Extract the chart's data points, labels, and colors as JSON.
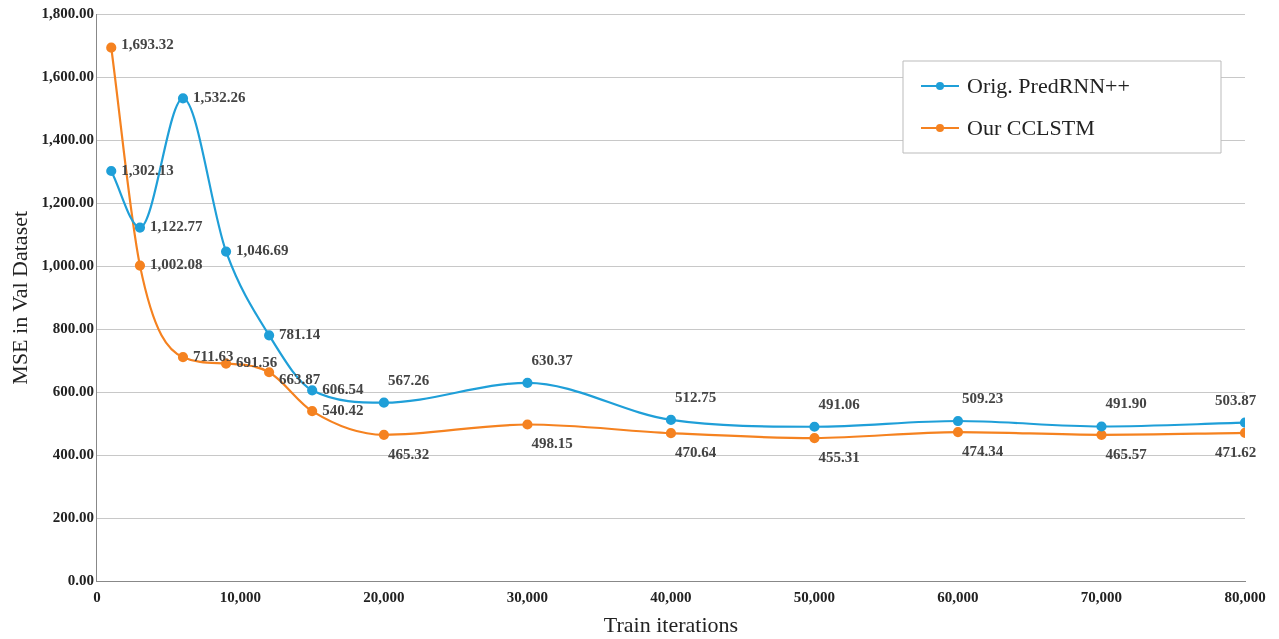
{
  "chart_data": {
    "type": "line",
    "xlabel": "Train iterations",
    "ylabel": "MSE in Val Dataset",
    "x": [
      1000,
      3000,
      6000,
      9000,
      12000,
      15000,
      20000,
      30000,
      40000,
      50000,
      60000,
      70000,
      80000
    ],
    "series": [
      {
        "name": "Orig. PredRNN++",
        "color": "#1f9fd8",
        "values": [
          1302.13,
          1122.77,
          1532.26,
          1046.69,
          781.14,
          606.54,
          567.26,
          630.37,
          512.75,
          491.06,
          509.23,
          491.9,
          503.87
        ],
        "value_labels": [
          "1,302.13",
          "1,122.77",
          "1,532.26",
          "1,046.69",
          "781.14",
          "606.54",
          "567.26",
          "630.37",
          "512.75",
          "491.06",
          "509.23",
          "491.90",
          "503.87"
        ]
      },
      {
        "name": "Our CCLSTM",
        "color": "#f58220",
        "values": [
          1693.32,
          1002.08,
          711.63,
          691.56,
          663.87,
          540.42,
          465.32,
          498.15,
          470.64,
          455.31,
          474.34,
          465.57,
          471.62
        ],
        "value_labels": [
          "1,693.32",
          "1,002.08",
          "711.63",
          "691.56",
          "663.87",
          "540.42",
          "465.32",
          "498.15",
          "470.64",
          "455.31",
          "474.34",
          "465.57",
          "471.62"
        ]
      }
    ],
    "xlim": [
      0,
      80000
    ],
    "xticks": [
      {
        "value": 0,
        "label": "0"
      },
      {
        "value": 10000,
        "label": "10,000"
      },
      {
        "value": 20000,
        "label": "20,000"
      },
      {
        "value": 30000,
        "label": "30,000"
      },
      {
        "value": 40000,
        "label": "40,000"
      },
      {
        "value": 50000,
        "label": "50,000"
      },
      {
        "value": 60000,
        "label": "60,000"
      },
      {
        "value": 70000,
        "label": "70,000"
      },
      {
        "value": 80000,
        "label": "80,000"
      }
    ],
    "ylim": [
      0,
      1800
    ],
    "yticks": [
      {
        "value": 0,
        "label": "0.00"
      },
      {
        "value": 200,
        "label": "200.00"
      },
      {
        "value": 400,
        "label": "400.00"
      },
      {
        "value": 600,
        "label": "600.00"
      },
      {
        "value": 800,
        "label": "800.00"
      },
      {
        "value": 1000,
        "label": "1,000.00"
      },
      {
        "value": 1200,
        "label": "1,200.00"
      },
      {
        "value": 1400,
        "label": "1,400.00"
      },
      {
        "value": 1600,
        "label": "1,600.00"
      },
      {
        "value": 1800,
        "label": "1,800.00"
      }
    ],
    "grid": "y",
    "legend": "top right",
    "marker": "circle",
    "line_style": "solid"
  }
}
